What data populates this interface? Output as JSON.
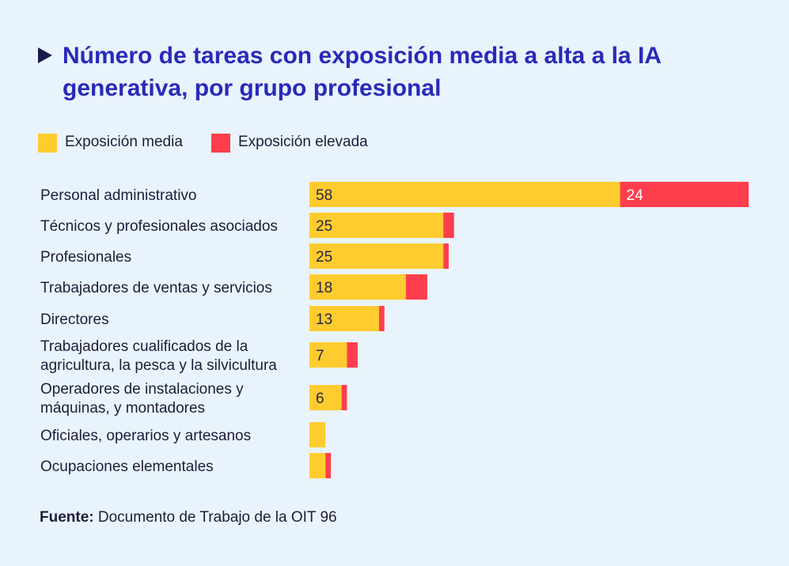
{
  "chart_data": {
    "type": "bar",
    "orientation": "horizontal",
    "stacked": true,
    "title": "Número de tareas con exposición media a alta a la IA generativa, por grupo profesional",
    "categories": [
      [
        "Personal administrativo"
      ],
      [
        "Técnicos y profesionales asociados"
      ],
      [
        "Profesionales"
      ],
      [
        "Trabajadores de ventas y servicios"
      ],
      [
        "Directores"
      ],
      [
        "Trabajadores cualificados de la",
        "agricultura, la pesca y la silvicultura"
      ],
      [
        "Operadores de instalaciones y",
        "máquinas, y montadores"
      ],
      [
        "Oficiales, operarios y artesanos"
      ],
      [
        "Ocupaciones elementales"
      ]
    ],
    "series": [
      {
        "name": "Exposición media",
        "color": "#ffcc2f",
        "values": [
          58,
          25,
          25,
          18,
          13,
          7,
          6,
          3,
          3
        ],
        "labels": [
          "58",
          "25",
          "25",
          "18",
          "13",
          "7",
          "6",
          "",
          ""
        ]
      },
      {
        "name": "Exposición elevada",
        "color": "#ff3e4d",
        "values": [
          24,
          2,
          1,
          4,
          1,
          2,
          1,
          0,
          1
        ],
        "labels": [
          "24",
          "",
          "",
          "",
          "",
          "",
          "",
          "",
          ""
        ]
      }
    ],
    "xlim": [
      0,
      82
    ],
    "grid": false,
    "legend": "top-left"
  },
  "source": {
    "label": "Fuente:",
    "text": "Documento de Trabajo de la OIT 96"
  }
}
